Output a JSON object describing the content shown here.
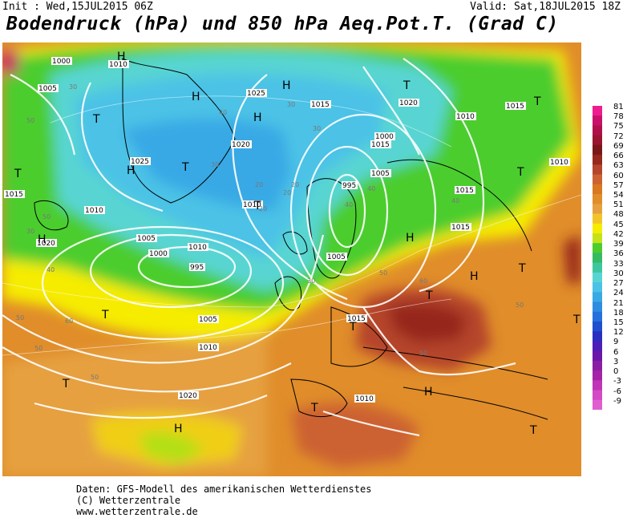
{
  "header": {
    "init": "Init : Wed,15JUL2015 06Z",
    "valid": "Valid: Sat,18JUL2015 18Z",
    "title": "Bodendruck (hPa) und 850 hPa Aeq.Pot.T. (Grad C)"
  },
  "legend": {
    "labels": [
      "81",
      "78",
      "75",
      "72",
      "69",
      "66",
      "63",
      "60",
      "57",
      "54",
      "51",
      "48",
      "45",
      "42",
      "39",
      "36",
      "33",
      "30",
      "27",
      "24",
      "21",
      "18",
      "15",
      "12",
      "9",
      "6",
      "3",
      "0",
      "-3",
      "-6",
      "-9"
    ],
    "colors": [
      "#ee1c8e",
      "#c8106a",
      "#b0104a",
      "#9a1530",
      "#7a1818",
      "#96281c",
      "#b5452b",
      "#cc6231",
      "#d9781f",
      "#e08d2a",
      "#e6a040",
      "#f1c52a",
      "#f6ec00",
      "#c6e21a",
      "#4ccd2d",
      "#35bb62",
      "#3ec79e",
      "#58d5d2",
      "#4cc2e6",
      "#39a9e5",
      "#2e8de0",
      "#2570dc",
      "#1f4ecf",
      "#2a2ec0",
      "#4d1fb8",
      "#6b16aa",
      "#8a1fa3",
      "#a324a7",
      "#c035b8",
      "#d34ac4",
      "#e05fd0"
    ]
  },
  "map": {
    "pressure_labels": [
      "1000",
      "1010",
      "1005",
      "1025",
      "1015",
      "1020",
      "1010",
      "1005",
      "1000",
      "995",
      "1010",
      "1015",
      "1020",
      "1005",
      "1010",
      "1015",
      "1020",
      "1015",
      "1015",
      "1010",
      "1005",
      "1000",
      "995",
      "1025",
      "1010",
      "1015",
      "1015",
      "1005",
      "1010",
      "1020",
      "1010"
    ],
    "pressure_centers": [
      "H",
      "T",
      "H",
      "H",
      "T",
      "H",
      "H",
      "T",
      "H",
      "T",
      "H",
      "T",
      "T",
      "T",
      "T",
      "T",
      "H",
      "T",
      "T",
      "T",
      "H",
      "T",
      "H",
      "T",
      "T"
    ],
    "temp_labels": [
      "50",
      "50",
      "40",
      "30",
      "30",
      "20",
      "20",
      "30",
      "40",
      "50",
      "50",
      "60",
      "50",
      "30",
      "40",
      "60",
      "50",
      "50",
      "50",
      "40",
      "30",
      "20",
      "20",
      "30",
      "40"
    ]
  },
  "footer": {
    "line1": "Daten: GFS-Modell des amerikanischen Wetterdienstes",
    "line2": "(C) Wetterzentrale",
    "line3": "www.wetterzentrale.de"
  }
}
